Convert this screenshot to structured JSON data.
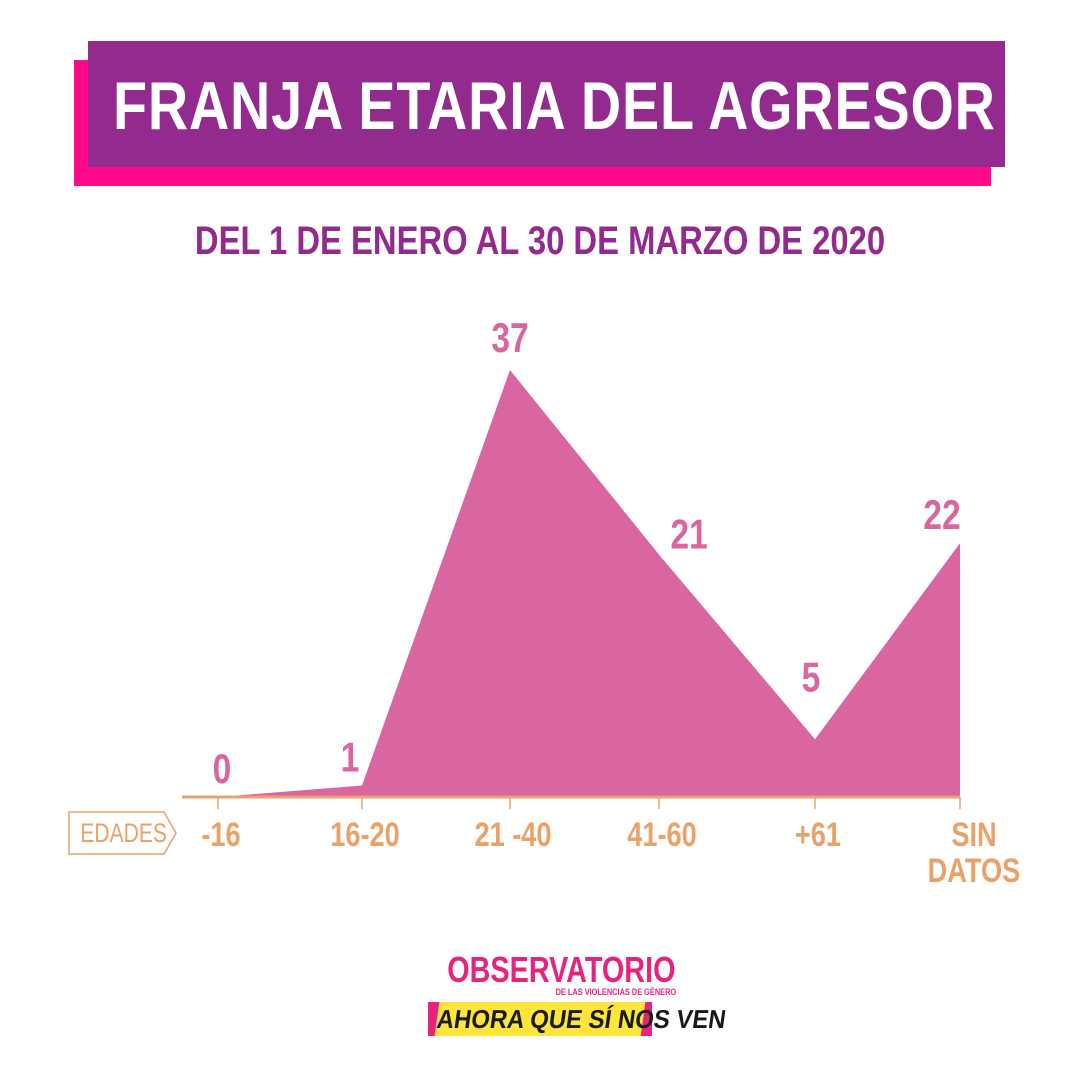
{
  "title": "FRANJA ETARIA DEL AGRESOR",
  "subtitle": "DEL 1 DE ENERO AL 30 DE MARZO DE 2020",
  "axis_tag": "EDADES",
  "colors": {
    "title_bg": "#922b8d",
    "title_shadow": "#ff0a8c",
    "subtitle": "#922b8d",
    "area": "#d966a0",
    "value_labels": "#d966a0",
    "axis": "#e8a26a",
    "logo_pink": "#e8237f",
    "logo_yellow": "#fde53c"
  },
  "chart_data": {
    "type": "area",
    "categories": [
      "-16",
      "16-20",
      "21 -40",
      "41-60",
      "+61",
      "SIN DATOS"
    ],
    "values": [
      0,
      1,
      37,
      21,
      5,
      22
    ],
    "title": "FRANJA ETARIA DEL AGRESOR",
    "subtitle": "DEL 1 DE ENERO AL 30 DE MARZO DE 2020",
    "xlabel": "EDADES",
    "ylabel": "",
    "data_labels": [
      "0",
      "1",
      "37",
      "21",
      "5",
      "22"
    ],
    "grid": false,
    "legend": "none"
  },
  "logo": {
    "main": "OBSERVATORIO",
    "sub": "DE LAS VIOLENCIAS DE GÉNERO",
    "bottom": "AHORA QUE SÍ NOS VEN"
  }
}
